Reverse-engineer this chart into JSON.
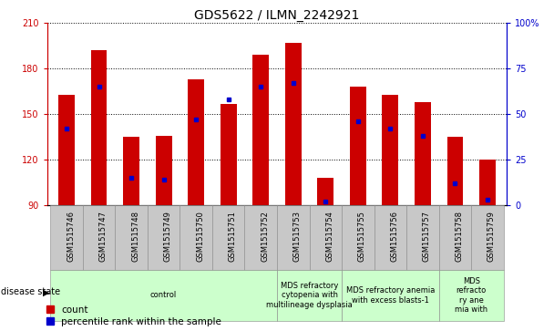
{
  "title": "GDS5622 / ILMN_2242921",
  "samples": [
    "GSM1515746",
    "GSM1515747",
    "GSM1515748",
    "GSM1515749",
    "GSM1515750",
    "GSM1515751",
    "GSM1515752",
    "GSM1515753",
    "GSM1515754",
    "GSM1515755",
    "GSM1515756",
    "GSM1515757",
    "GSM1515758",
    "GSM1515759"
  ],
  "counts": [
    163,
    192,
    135,
    136,
    173,
    157,
    189,
    197,
    108,
    168,
    163,
    158,
    135,
    120
  ],
  "percentile_ranks": [
    42,
    65,
    15,
    14,
    47,
    58,
    65,
    67,
    2,
    46,
    42,
    38,
    12,
    3
  ],
  "y_min": 90,
  "y_max": 210,
  "y_ticks_left": [
    90,
    120,
    150,
    180,
    210
  ],
  "y_ticks_right": [
    0,
    25,
    50,
    75,
    100
  ],
  "bar_color": "#cc0000",
  "marker_color": "#0000cc",
  "bg_color": "#ffffff",
  "disease_groups": [
    {
      "label": "control",
      "start": 0,
      "end": 7,
      "color": "#ccffcc"
    },
    {
      "label": "MDS refractory\ncytopenia with\nmultilineage dysplasia",
      "start": 7,
      "end": 9,
      "color": "#ccffcc"
    },
    {
      "label": "MDS refractory anemia\nwith excess blasts-1",
      "start": 9,
      "end": 12,
      "color": "#ccffcc"
    },
    {
      "label": "MDS\nrefracto\nry ane\nmia with",
      "start": 12,
      "end": 14,
      "color": "#ccffcc"
    }
  ],
  "bar_width": 0.5,
  "tick_label_color_left": "#cc0000",
  "tick_label_color_right": "#0000cc",
  "title_fontsize": 10,
  "axis_fontsize": 7,
  "legend_fontsize": 7.5,
  "sample_box_color": "#c8c8c8",
  "sample_label_fontsize": 6
}
